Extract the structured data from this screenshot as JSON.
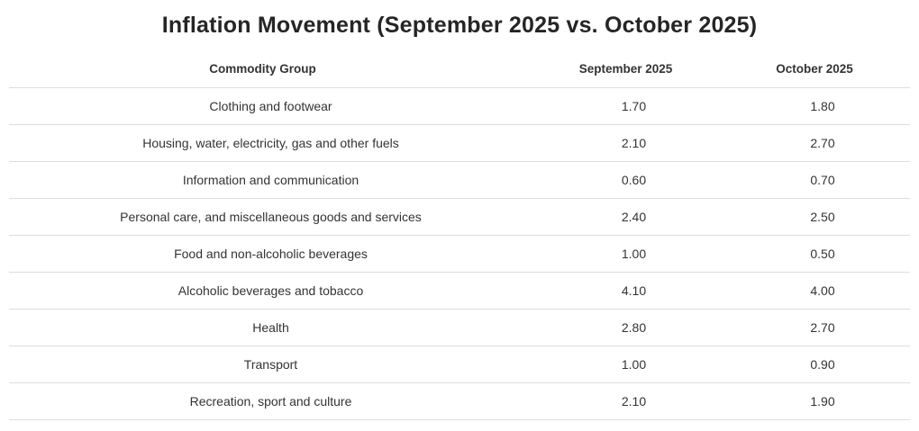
{
  "chart_data": {
    "type": "table",
    "title": "Inflation Movement (September 2025 vs. October 2025)",
    "columns": [
      "Commodity Group",
      "September 2025",
      "October 2025"
    ],
    "rows": [
      [
        "Clothing and footwear",
        "1.70",
        "1.80"
      ],
      [
        "Housing, water, electricity, gas and other fuels",
        "2.10",
        "2.70"
      ],
      [
        "Information and communication",
        "0.60",
        "0.70"
      ],
      [
        "Personal care, and miscellaneous goods and services",
        "2.40",
        "2.50"
      ],
      [
        "Food and non-alcoholic beverages",
        "1.00",
        "0.50"
      ],
      [
        "Alcoholic beverages and tobacco",
        "4.10",
        "4.00"
      ],
      [
        "Health",
        "2.80",
        "2.70"
      ],
      [
        "Transport",
        "1.00",
        "0.90"
      ],
      [
        "Recreation, sport and culture",
        "2.10",
        "1.90"
      ]
    ],
    "layout": {
      "column_alignment": [
        "center",
        "center",
        "center"
      ],
      "row_dividers": true,
      "header_bold": true,
      "legend_position": "none",
      "grid": "horizontal-dividers-only"
    }
  },
  "colors": {
    "title-color": "#252525",
    "header-text": "#333333",
    "cell-text": "#333333",
    "divider": "#dddddd",
    "background": "#ffffff"
  }
}
